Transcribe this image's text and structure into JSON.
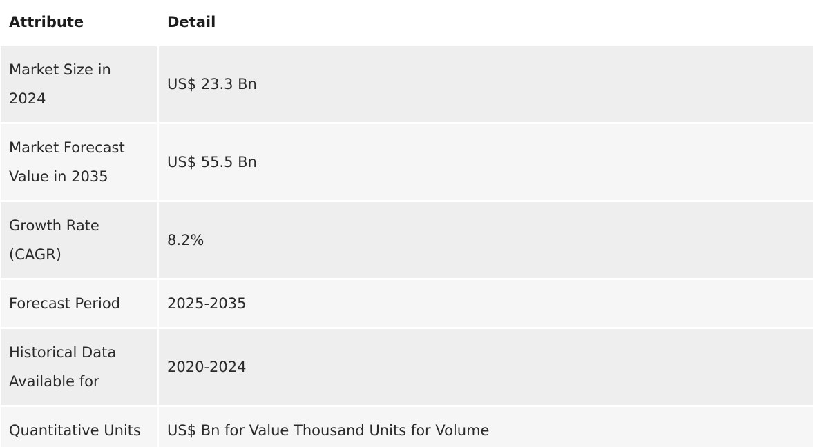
{
  "table": {
    "headers": {
      "attribute": "Attribute",
      "detail": "Detail"
    },
    "rows": [
      {
        "attribute": "Market Size in 2024",
        "detail": "US$ 23.3 Bn"
      },
      {
        "attribute": "Market Forecast Value in 2035",
        "detail": "US$ 55.5 Bn"
      },
      {
        "attribute": "Growth Rate (CAGR)",
        "detail": "8.2%"
      },
      {
        "attribute": "Forecast Period",
        "detail": "2025-2035"
      },
      {
        "attribute": "Historical Data Available for",
        "detail": "2020-2024"
      },
      {
        "attribute": "Quantitative Units",
        "detail": "US$ Bn for Value Thousand Units for Volume"
      }
    ]
  }
}
